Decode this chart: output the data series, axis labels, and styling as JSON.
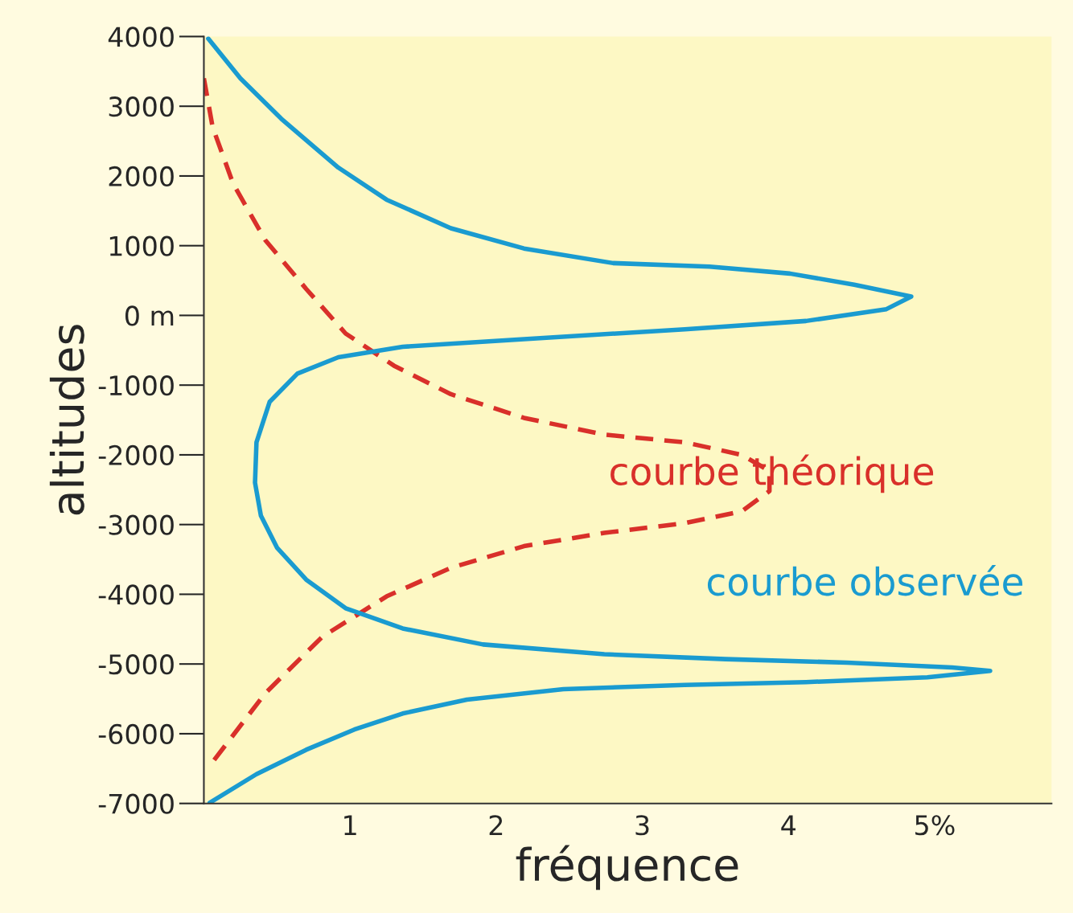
{
  "chart_data": {
    "type": "line",
    "xlabel": "fréquence",
    "ylabel": "altitudes",
    "xlim": [
      0,
      5.8
    ],
    "ylim": [
      -7000,
      4000
    ],
    "xticks": [
      1,
      2,
      3,
      4,
      {
        "value": 5,
        "label": "5%"
      }
    ],
    "yticks": [
      -7000,
      -6000,
      -5000,
      -4000,
      -3000,
      -2000,
      -1000,
      {
        "value": 0,
        "label": "0 m"
      },
      1000,
      2000,
      3000,
      4000
    ],
    "grid": false,
    "legend": false,
    "series": [
      {
        "name": "courbe théorique",
        "color": "#d9302a",
        "line_style": "dashed",
        "x": [
          0.0,
          0.06,
          0.2,
          0.42,
          0.7,
          0.97,
          1.3,
          1.69,
          2.19,
          2.74,
          3.29,
          3.68,
          3.87,
          3.87,
          3.68,
          3.29,
          2.74,
          2.19,
          1.69,
          1.25,
          0.81,
          0.42,
          0.04
        ],
        "values": [
          3400,
          2700,
          1890,
          1080,
          380,
          -260,
          -720,
          -1130,
          -1470,
          -1710,
          -1820,
          -2000,
          -2230,
          -2520,
          -2810,
          -2980,
          -3120,
          -3310,
          -3620,
          -4030,
          -4610,
          -5420,
          -6460
        ]
      },
      {
        "name": "courbe observée",
        "color": "#1a9bd0",
        "line_style": "solid",
        "x": [
          0.03,
          0.25,
          0.53,
          0.92,
          1.25,
          1.69,
          2.19,
          2.8,
          3.46,
          4.01,
          4.45,
          4.84,
          4.67,
          4.12,
          3.29,
          2.19,
          1.36,
          0.92,
          0.64,
          0.45,
          0.36,
          0.35,
          0.39,
          0.5,
          0.7,
          0.97,
          1.36,
          1.91,
          2.74,
          3.57,
          4.4,
          5.12,
          5.38,
          4.95,
          4.12,
          3.29,
          2.46,
          1.8,
          1.36,
          1.03,
          0.7,
          0.36,
          0.04
        ],
        "values": [
          3970,
          3400,
          2820,
          2120,
          1660,
          1250,
          960,
          750,
          700,
          600,
          440,
          270,
          90,
          -80,
          -200,
          -340,
          -450,
          -600,
          -835,
          -1240,
          -1820,
          -2400,
          -2870,
          -3330,
          -3790,
          -4200,
          -4490,
          -4720,
          -4860,
          -4930,
          -4980,
          -5050,
          -5100,
          -5190,
          -5260,
          -5300,
          -5360,
          -5510,
          -5710,
          -5940,
          -6230,
          -6580,
          -6990
        ]
      }
    ]
  }
}
